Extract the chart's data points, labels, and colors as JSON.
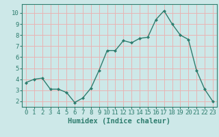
{
  "x": [
    0,
    1,
    2,
    3,
    4,
    5,
    6,
    7,
    8,
    9,
    10,
    11,
    12,
    13,
    14,
    15,
    16,
    17,
    18,
    19,
    20,
    21,
    22,
    23
  ],
  "y": [
    3.7,
    4.0,
    4.1,
    3.1,
    3.1,
    2.8,
    1.9,
    2.3,
    3.2,
    4.8,
    6.6,
    6.6,
    7.5,
    7.3,
    7.7,
    7.8,
    9.4,
    10.2,
    9.0,
    8.0,
    7.6,
    4.8,
    3.1,
    2.0
  ],
  "line_color": "#2e7d6e",
  "marker": "D",
  "marker_size": 2.0,
  "bg_color": "#cde8e8",
  "grid_color": "#e8b4b4",
  "xlabel": "Humidex (Indice chaleur)",
  "xlabel_fontsize": 7.5,
  "ylim": [
    1.5,
    10.8
  ],
  "xlim": [
    -0.5,
    23.5
  ],
  "yticks": [
    2,
    3,
    4,
    5,
    6,
    7,
    8,
    9,
    10
  ],
  "xtick_labels": [
    "0",
    "1",
    "2",
    "3",
    "4",
    "5",
    "6",
    "7",
    "8",
    "9",
    "10",
    "11",
    "12",
    "13",
    "14",
    "15",
    "16",
    "17",
    "18",
    "19",
    "20",
    "21",
    "22",
    "23"
  ],
  "tick_fontsize": 6.5,
  "tick_color": "#2e7d6e"
}
